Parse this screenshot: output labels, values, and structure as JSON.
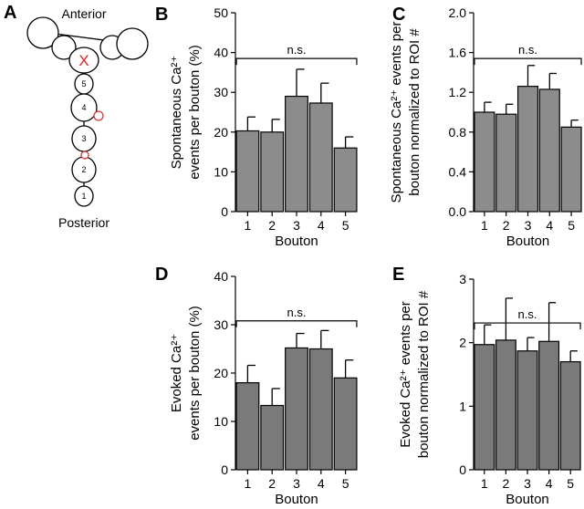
{
  "diagram": {
    "panel": "A",
    "top_label": "Anterior",
    "bottom_label": "Posterior",
    "marker": "X",
    "boutons": [
      "1",
      "2",
      "3",
      "4",
      "5"
    ]
  },
  "chart_data": [
    {
      "type": "bar",
      "panel": "B",
      "ylabel": [
        "Spontaneous Ca²⁺",
        "events per bouton  (%)"
      ],
      "xlabel": "Bouton",
      "categories": [
        "1",
        "2",
        "3",
        "4",
        "5"
      ],
      "values": [
        20.3,
        20,
        29,
        27.3,
        16
      ],
      "errors": [
        3.5,
        3.2,
        6.8,
        5,
        2.8
      ],
      "color": "#8c8c8c",
      "ylim": [
        0,
        50
      ],
      "yticks": [
        0,
        10,
        20,
        30,
        40,
        50
      ],
      "annotation": "n.s."
    },
    {
      "type": "bar",
      "panel": "C",
      "ylabel": [
        "Spontaneous Ca²⁺ events per",
        "bouton normalized to ROI #"
      ],
      "xlabel": "Bouton",
      "categories": [
        "1",
        "2",
        "3",
        "4",
        "5"
      ],
      "values": [
        1.0,
        0.98,
        1.26,
        1.23,
        0.85
      ],
      "errors": [
        0.1,
        0.1,
        0.21,
        0.16,
        0.07
      ],
      "color": "#8c8c8c",
      "ylim": [
        0,
        2
      ],
      "yticks": [
        {
          "value": 0,
          "label": "0.0"
        },
        0.4,
        0.8,
        1.2,
        1.6,
        {
          "value": 2,
          "label": "2.0"
        }
      ],
      "annotation": "n.s."
    },
    {
      "type": "bar",
      "panel": "D",
      "ylabel": [
        "Evoked Ca²⁺",
        "events per bouton  (%)"
      ],
      "xlabel": "Bouton",
      "categories": [
        "1",
        "2",
        "3",
        "4",
        "5"
      ],
      "values": [
        18,
        13.3,
        25.2,
        25,
        19
      ],
      "errors": [
        3.6,
        3.5,
        3,
        3.8,
        3.7
      ],
      "color": "#7a7a7a",
      "ylim": [
        0,
        40
      ],
      "yticks": [
        0,
        10,
        20,
        30,
        40
      ],
      "annotation": "n.s."
    },
    {
      "type": "bar",
      "panel": "E",
      "ylabel": [
        "Evoked Ca²⁺ events per",
        "bouton normalized to ROI #"
      ],
      "xlabel": "Bouton",
      "categories": [
        "1",
        "2",
        "3",
        "4",
        "5"
      ],
      "values": [
        1.97,
        2.04,
        1.87,
        2.02,
        1.7
      ],
      "errors": [
        0.31,
        0.66,
        0.21,
        0.61,
        0.17
      ],
      "color": "#7a7a7a",
      "ylim": [
        0,
        3
      ],
      "yticks": [
        0,
        1,
        2,
        3
      ],
      "annotation": "n.s."
    }
  ]
}
